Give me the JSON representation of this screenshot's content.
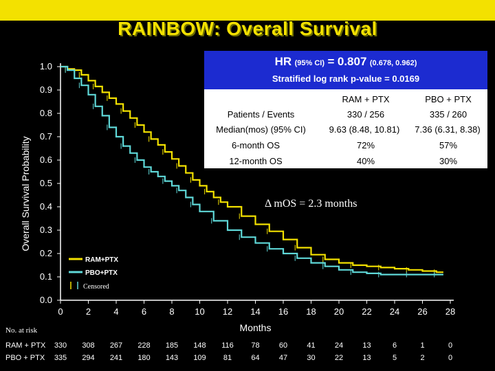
{
  "title": "RAINBOW: Overall Survival",
  "hr_box": {
    "hr_label": "HR",
    "ci_label": "(95% CI)",
    "equals": "=",
    "hr_value": "0.807",
    "ci_value": "(0.678, 0.962)",
    "logrank": "Stratified log rank p-value = 0.0169"
  },
  "stats_table": {
    "col1": "RAM + PTX",
    "col2": "PBO + PTX",
    "rows": [
      {
        "label": "Patients / Events",
        "v1": "330 / 256",
        "v2": "335 / 260"
      },
      {
        "label": "Median(mos) (95% CI)",
        "v1": "9.63 (8.48, 10.81)",
        "v2": "7.36 (6.31, 8.38)"
      },
      {
        "label": "6-month OS",
        "v1": "72%",
        "v2": "57%"
      },
      {
        "label": "12-month OS",
        "v1": "40%",
        "v2": "30%"
      }
    ]
  },
  "delta_text": "Δ mOS = 2.3 months",
  "chart_data": {
    "type": "line",
    "xlabel": "Months",
    "ylabel": "Overall Survival Probability",
    "xlim": [
      0,
      28
    ],
    "ylim": [
      0,
      1
    ],
    "xticks": [
      0,
      2,
      4,
      6,
      8,
      10,
      12,
      14,
      16,
      18,
      20,
      22,
      24,
      26,
      28
    ],
    "yticks": [
      "0.0",
      "0.1",
      "0.2",
      "0.3",
      "0.4",
      "0.5",
      "0.6",
      "0.7",
      "0.8",
      "0.9",
      "1.0"
    ],
    "censored_label": "Censored",
    "series": [
      {
        "name": "RAM+PTX",
        "color": "#f3e100",
        "x": [
          0,
          0.5,
          1,
          1.5,
          2,
          2.5,
          3,
          3.5,
          4,
          4.5,
          5,
          5.5,
          6,
          6.5,
          7,
          7.5,
          8,
          8.5,
          9,
          9.5,
          10,
          10.5,
          11,
          11.5,
          12,
          13,
          14,
          15,
          16,
          17,
          18,
          19,
          20,
          21,
          22,
          23,
          24,
          25,
          26,
          27,
          27.5
        ],
        "y": [
          1.0,
          0.99,
          0.985,
          0.965,
          0.94,
          0.915,
          0.89,
          0.865,
          0.84,
          0.81,
          0.78,
          0.75,
          0.72,
          0.69,
          0.665,
          0.635,
          0.605,
          0.575,
          0.545,
          0.515,
          0.49,
          0.465,
          0.44,
          0.42,
          0.4,
          0.36,
          0.325,
          0.295,
          0.26,
          0.225,
          0.195,
          0.175,
          0.16,
          0.15,
          0.145,
          0.14,
          0.135,
          0.13,
          0.125,
          0.12,
          0.12
        ]
      },
      {
        "name": "PBO+PTX",
        "color": "#5fd8d8",
        "x": [
          0,
          0.5,
          1,
          1.5,
          2,
          2.5,
          3,
          3.5,
          4,
          4.5,
          5,
          5.5,
          6,
          6.5,
          7,
          7.5,
          8,
          8.5,
          9,
          9.5,
          10,
          11,
          12,
          13,
          14,
          15,
          16,
          17,
          18,
          19,
          20,
          21,
          22,
          23,
          24,
          25,
          26,
          27,
          27.5
        ],
        "y": [
          1.0,
          0.985,
          0.95,
          0.92,
          0.88,
          0.83,
          0.79,
          0.74,
          0.7,
          0.66,
          0.63,
          0.6,
          0.57,
          0.55,
          0.53,
          0.51,
          0.49,
          0.47,
          0.44,
          0.41,
          0.38,
          0.34,
          0.3,
          0.27,
          0.245,
          0.22,
          0.2,
          0.18,
          0.16,
          0.145,
          0.13,
          0.12,
          0.115,
          0.11,
          0.11,
          0.11,
          0.11,
          0.11,
          0.11
        ]
      }
    ]
  },
  "risk_table": {
    "title": "No. at risk",
    "rows": [
      {
        "label": "RAM + PTX",
        "values": [
          "330",
          "308",
          "267",
          "228",
          "185",
          "148",
          "116",
          "78",
          "60",
          "41",
          "24",
          "13",
          "6",
          "1",
          "0"
        ]
      },
      {
        "label": "PBO + PTX",
        "values": [
          "335",
          "294",
          "241",
          "180",
          "143",
          "109",
          "81",
          "64",
          "47",
          "30",
          "22",
          "13",
          "5",
          "2",
          "0"
        ]
      }
    ]
  }
}
